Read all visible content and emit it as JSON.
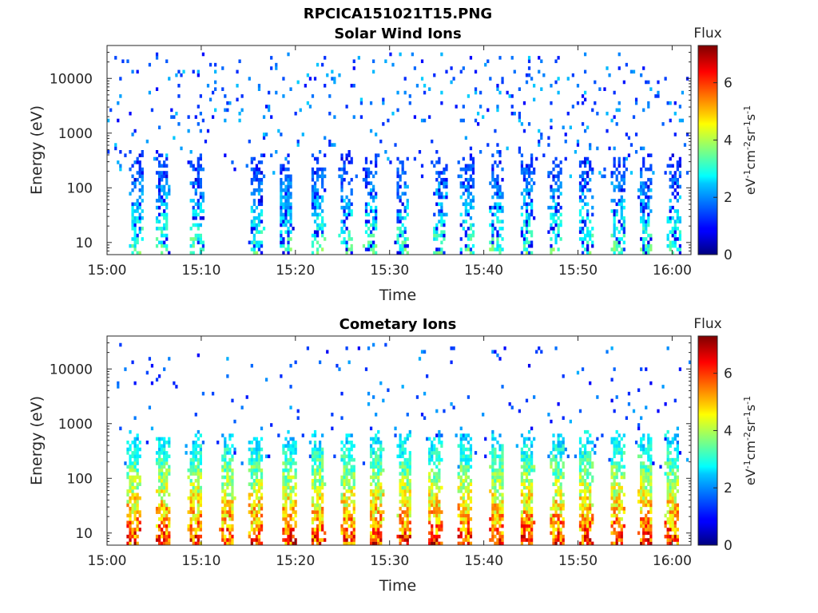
{
  "figure": {
    "filename_title": "RPCICA151021T15.PNG"
  },
  "chart_data": [
    {
      "type": "heatmap",
      "title": "Solar Wind Ions",
      "xlabel": "Time",
      "ylabel": "Energy (eV)",
      "yscale": "log",
      "xlim": [
        "15:00",
        "16:02"
      ],
      "ylim": [
        6,
        40000
      ],
      "xticks": [
        "15:00",
        "15:10",
        "15:20",
        "15:30",
        "15:40",
        "15:50",
        "16:00"
      ],
      "yticks": [
        "10",
        "100",
        "1000",
        "10000"
      ],
      "colorbar": {
        "label_top": "Flux",
        "units": "eV-1cm-2sr-1s-1",
        "range": [
          0,
          7.3
        ],
        "ticks": [
          "0",
          "2",
          "4",
          "6"
        ],
        "colormap": "jet"
      },
      "bursts_minutes": [
        3.2,
        5.9,
        9.6,
        15.9,
        19.0,
        22.4,
        25.4,
        28.0,
        31.4,
        35.4,
        38.3,
        41.4,
        44.6,
        47.6,
        50.8,
        54.3,
        57.2,
        60.2
      ],
      "burst_peak_flux": 3.2,
      "burst_top_energy_eV": 300,
      "background_flux": 2.2
    },
    {
      "type": "heatmap",
      "title": "Cometary Ions",
      "xlabel": "Time",
      "ylabel": "Energy (eV)",
      "yscale": "log",
      "xlim": [
        "15:00",
        "16:02"
      ],
      "ylim": [
        6,
        40000
      ],
      "xticks": [
        "15:00",
        "15:10",
        "15:20",
        "15:30",
        "15:40",
        "15:50",
        "16:00"
      ],
      "yticks": [
        "10",
        "100",
        "1000",
        "10000"
      ],
      "colorbar": {
        "label_top": "Flux",
        "units": "eV-1cm-2sr-1s-1",
        "range": [
          0,
          7.3
        ],
        "ticks": [
          "0",
          "2",
          "4",
          "6"
        ],
        "colormap": "jet"
      },
      "bursts_minutes": [
        2.8,
        6.0,
        9.4,
        12.8,
        15.8,
        19.4,
        22.4,
        25.6,
        28.6,
        31.6,
        34.8,
        38.0,
        41.4,
        44.6,
        47.8,
        50.8,
        54.2,
        57.2,
        60.0
      ],
      "burst_peak_flux": 5.8,
      "burst_top_energy_eV": 500,
      "background_flux": 2.0
    }
  ]
}
